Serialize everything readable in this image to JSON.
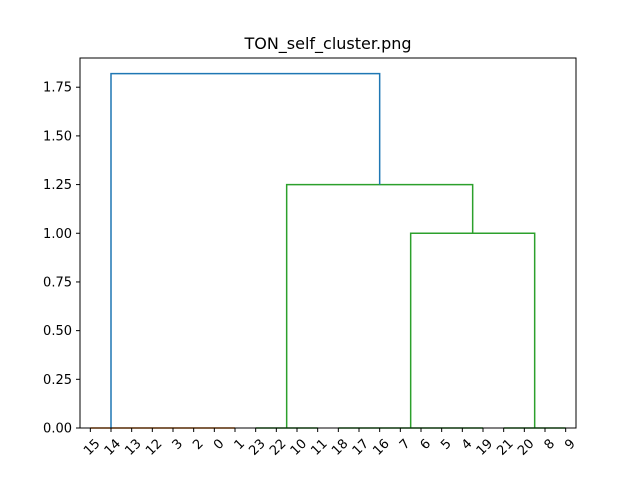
{
  "chart_data": {
    "type": "dendrogram",
    "title": "TON_self_cluster.png",
    "xlabel": "",
    "ylabel": "",
    "ylim": [
      0,
      1.9
    ],
    "y_ticks": [
      "0.00",
      "0.25",
      "0.50",
      "0.75",
      "1.00",
      "1.25",
      "1.50",
      "1.75"
    ],
    "leaf_order": [
      "15",
      "14",
      "13",
      "12",
      "3",
      "2",
      "0",
      "1",
      "23",
      "22",
      "10",
      "11",
      "18",
      "17",
      "16",
      "7",
      "6",
      "5",
      "4",
      "19",
      "21",
      "20",
      "8",
      "9"
    ],
    "colors": {
      "root": "#1f77b4",
      "cluster_1": "#ff7f0e",
      "cluster_2": "#2ca02c"
    },
    "links": [
      {
        "name": "cluster-1-merges",
        "x_left": 0,
        "x_right": 7,
        "height": 0.0,
        "color_key": "cluster_1"
      },
      {
        "name": "cluster-2a-merges",
        "x_left": 8,
        "x_right": 11,
        "height": 0.0,
        "color_key": "cluster_2"
      },
      {
        "name": "cluster-2b-merges",
        "x_left": 12,
        "x_right": 19,
        "height": 0.0,
        "color_key": "cluster_2"
      },
      {
        "name": "cluster-2c-merges",
        "x_left": 20,
        "x_right": 23,
        "height": 0.0,
        "color_key": "cluster_2"
      },
      {
        "name": "merge-1.00",
        "x_left": 15.5,
        "x_right": 21.5,
        "y_left": 0.0,
        "y_right": 0.0,
        "height": 1.0,
        "color_key": "cluster_2"
      },
      {
        "name": "merge-1.25",
        "x_left": 9.5,
        "x_right": 18.5,
        "y_left": 0.0,
        "y_right": 1.0,
        "height": 1.25,
        "color_key": "cluster_2"
      },
      {
        "name": "merge-1.82",
        "x_left": 1,
        "x_right": 14,
        "y_left": 0.0,
        "y_right": 1.25,
        "height": 1.82,
        "color_key": "root"
      }
    ]
  }
}
